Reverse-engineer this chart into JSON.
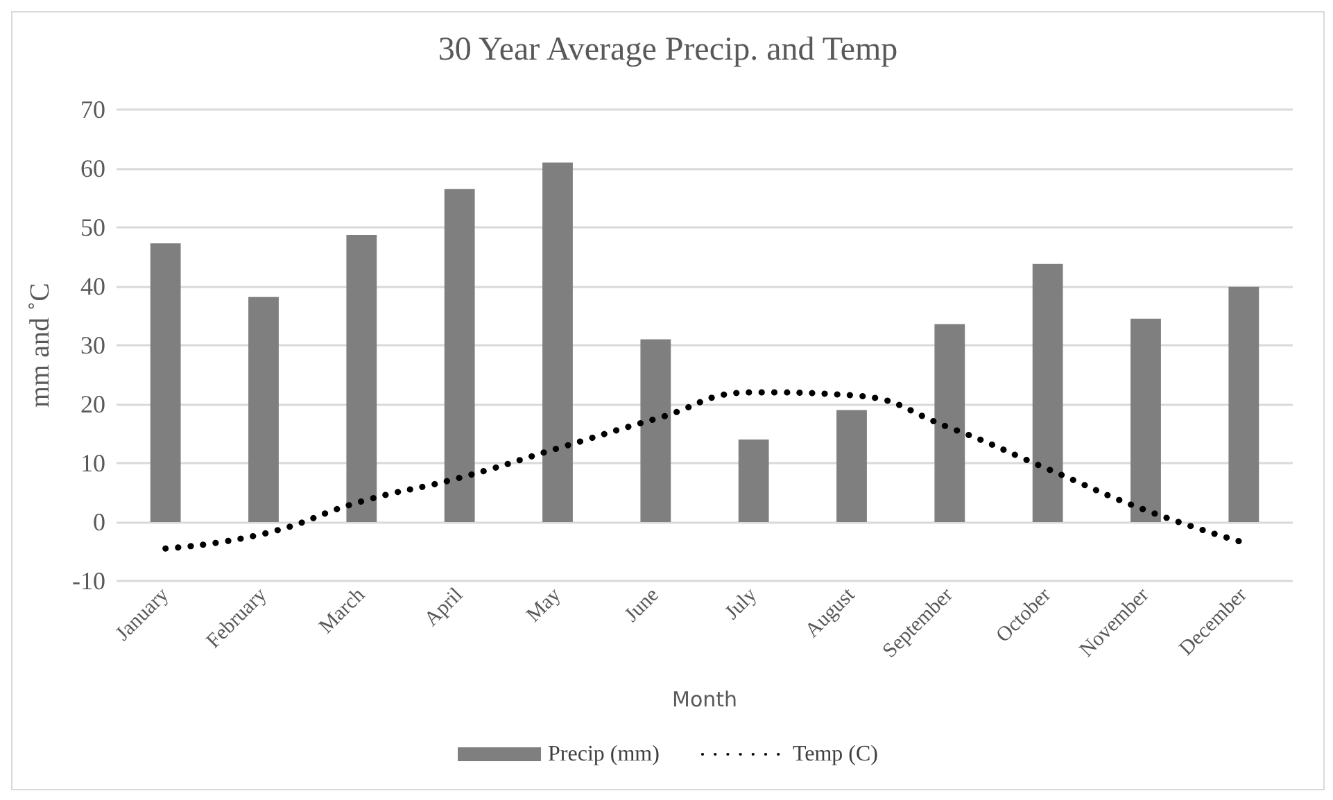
{
  "chart_data": {
    "type": "bar",
    "title": "30 Year Average Precip. and Temp",
    "xlabel": "Month",
    "ylabel": "mm and ˚C",
    "categories": [
      "January",
      "February",
      "March",
      "April",
      "May",
      "June",
      "July",
      "August",
      "September",
      "October",
      "November",
      "December"
    ],
    "series": [
      {
        "name": "Precip (mm)",
        "color": "#7f7f7f",
        "values": [
          47.3,
          38.2,
          48.7,
          56.5,
          61,
          31,
          14,
          19,
          33.6,
          43.8,
          34.5,
          39.9
        ]
      },
      {
        "name": "Temp (C)",
        "type": "line",
        "color": "#000000",
        "line_style": "dotted",
        "values": [
          -4.5,
          -2,
          3.5,
          7.5,
          12.5,
          17.5,
          22,
          21.5,
          16,
          9,
          2,
          -3.5
        ]
      }
    ],
    "ylim": [
      -10,
      70
    ],
    "yticks": [
      -10,
      0,
      10,
      20,
      30,
      40,
      50,
      60,
      70
    ],
    "grid": "y",
    "legend": "bottom",
    "marker": "none"
  }
}
